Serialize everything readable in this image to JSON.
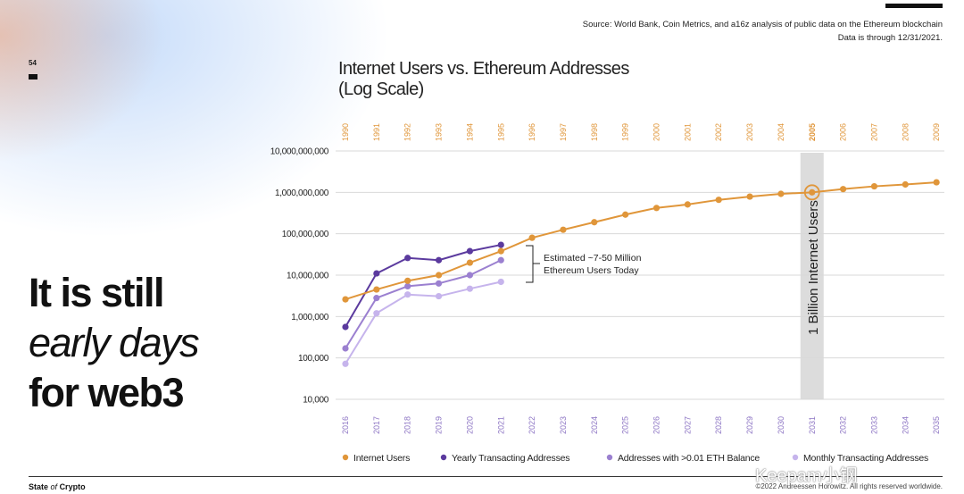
{
  "page": {
    "number": "54",
    "source_line1": "Source: World Bank, Coin Metrics, and a16z analysis of public data on the Ethereum blockchain",
    "source_line2": "Data is through 12/31/2021.",
    "headline_1": "It is still",
    "headline_2": "early days",
    "headline_3": "for web3",
    "footer_brand_a": "State",
    "footer_brand_b": "of",
    "footer_brand_c": "Crypto",
    "footer_copyright": "©2022 Andreessen Horowitz. All rights reserved worldwide.",
    "watermark": "Keepam小钢"
  },
  "chart_data": {
    "type": "line",
    "title_line1": "Internet Users vs. Ethereum Addresses",
    "title_line2": "(Log Scale)",
    "y_scale": "log",
    "ylim": [
      10000,
      10000000000
    ],
    "y_ticks": [
      10000,
      100000,
      1000000,
      10000000,
      100000000,
      1000000000,
      10000000000
    ],
    "y_tick_labels": [
      "10,000",
      "100,000",
      "1,000,000",
      "10,000,000",
      "100,000,000",
      "1,000,000,000",
      "10,000,000,000"
    ],
    "top_axis_labels": [
      "1990",
      "1991",
      "1992",
      "1993",
      "1994",
      "1995",
      "1996",
      "1997",
      "1998",
      "1999",
      "2000",
      "2001",
      "2002",
      "2003",
      "2004",
      "2005",
      "2006",
      "2007",
      "2008",
      "2009"
    ],
    "bottom_axis_labels": [
      "2016",
      "2017",
      "2018",
      "2019",
      "2020",
      "2021",
      "2022",
      "2023",
      "2024",
      "2025",
      "2026",
      "2027",
      "2028",
      "2029",
      "2030",
      "2031",
      "2032",
      "2033",
      "2034",
      "2035"
    ],
    "series": [
      {
        "name": "Internet Users",
        "color": "#E0963A",
        "values": [
          2600000,
          4500000,
          7300000,
          10000000,
          20000000,
          38000000,
          80000000,
          125000000,
          190000000,
          290000000,
          420000000,
          510000000,
          660000000,
          790000000,
          920000000,
          1000000000,
          1200000000,
          1400000000,
          1550000000,
          1750000000
        ]
      },
      {
        "name": "Yearly Transacting Addresses",
        "color": "#5B3A9E",
        "values": [
          560000,
          11000000,
          26000000,
          23000000,
          38000000,
          54000000
        ]
      },
      {
        "name": "Addresses with >0.01 ETH Balance",
        "color": "#9B80D0",
        "values": [
          170000,
          2800000,
          5400000,
          6300000,
          10000000,
          23000000
        ]
      },
      {
        "name": "Monthly Transacting Addresses",
        "color": "#C6B4EC",
        "values": [
          72000,
          1200000,
          3400000,
          3100000,
          4700000,
          6900000
        ]
      }
    ],
    "highlight_index": 15,
    "highlight_label": "1 Billion Internet Users",
    "annotation_line1": "Estimated ~7-50 Million",
    "annotation_line2": "Ethereum Users Today",
    "legend_position": "bottom",
    "grid": true
  }
}
